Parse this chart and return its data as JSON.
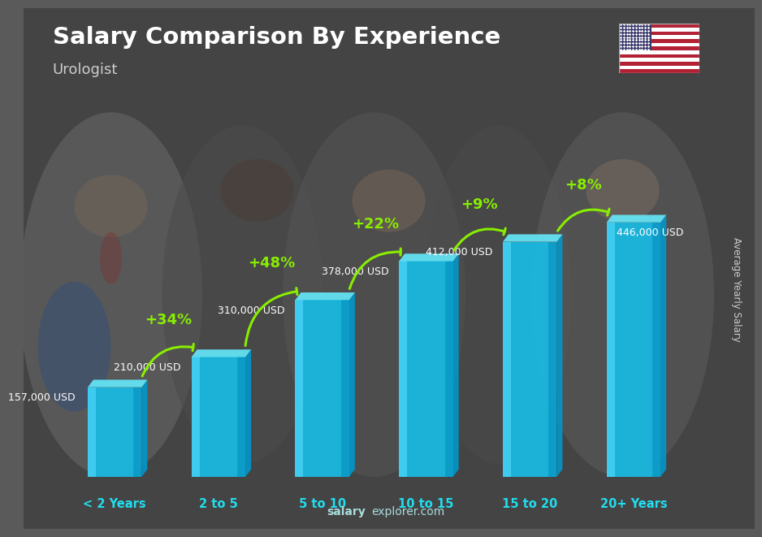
{
  "title": "Salary Comparison By Experience",
  "subtitle": "Urologist",
  "categories": [
    "< 2 Years",
    "2 to 5",
    "5 to 10",
    "10 to 15",
    "15 to 20",
    "20+ Years"
  ],
  "values": [
    157000,
    210000,
    310000,
    378000,
    412000,
    446000
  ],
  "value_labels": [
    "157,000 USD",
    "210,000 USD",
    "310,000 USD",
    "378,000 USD",
    "412,000 USD",
    "446,000 USD"
  ],
  "pct_changes": [
    "+34%",
    "+48%",
    "+22%",
    "+9%",
    "+8%"
  ],
  "bar_color_face": "#1ab8e0",
  "bar_color_highlight": "#55ddff",
  "bar_color_shadow": "#0088bb",
  "bar_color_top": "#66eeff",
  "bar_color_right": "#0099cc",
  "bg_color": "#5a5a5a",
  "title_color": "#ffffff",
  "subtitle_color": "#cccccc",
  "label_color": "#ffffff",
  "pct_color": "#88ee00",
  "xlabel_color": "#22ddee",
  "watermark": "salaryexplorer.com",
  "watermark_salary": "salary",
  "watermark_explorer": "explorer.com",
  "ylabel_text": "Average Yearly Salary",
  "ylabel_color": "#cccccc",
  "flag_border_color": "#aaaaaa"
}
